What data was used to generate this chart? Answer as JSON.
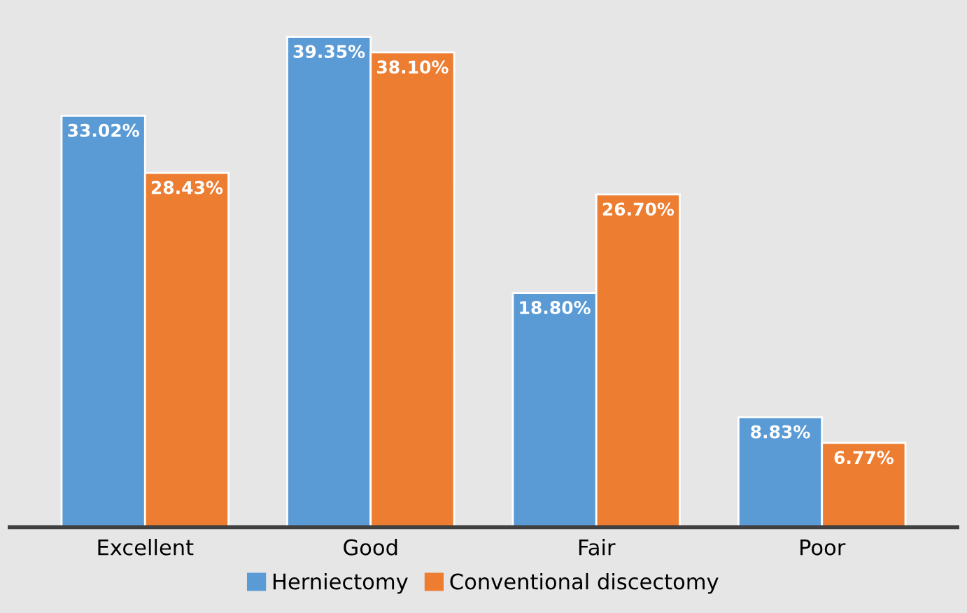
{
  "chart_data": {
    "type": "bar",
    "categories": [
      "Excellent",
      "Good",
      "Fair",
      "Poor"
    ],
    "series": [
      {
        "name": "Herniectomy",
        "color": "#5b9bd5",
        "values": [
          33.02,
          39.35,
          18.8,
          8.83
        ],
        "value_labels": [
          "33.02%",
          "39.35%",
          "18.80%",
          "8.83%"
        ]
      },
      {
        "name": "Conventional discectomy",
        "color": "#ed7d31",
        "values": [
          28.43,
          38.1,
          26.7,
          6.77
        ],
        "value_labels": [
          "28.43%",
          "38.10%",
          "26.70%",
          "6.77%"
        ]
      }
    ],
    "legend": "bottom",
    "tick_labels": "x"
  }
}
